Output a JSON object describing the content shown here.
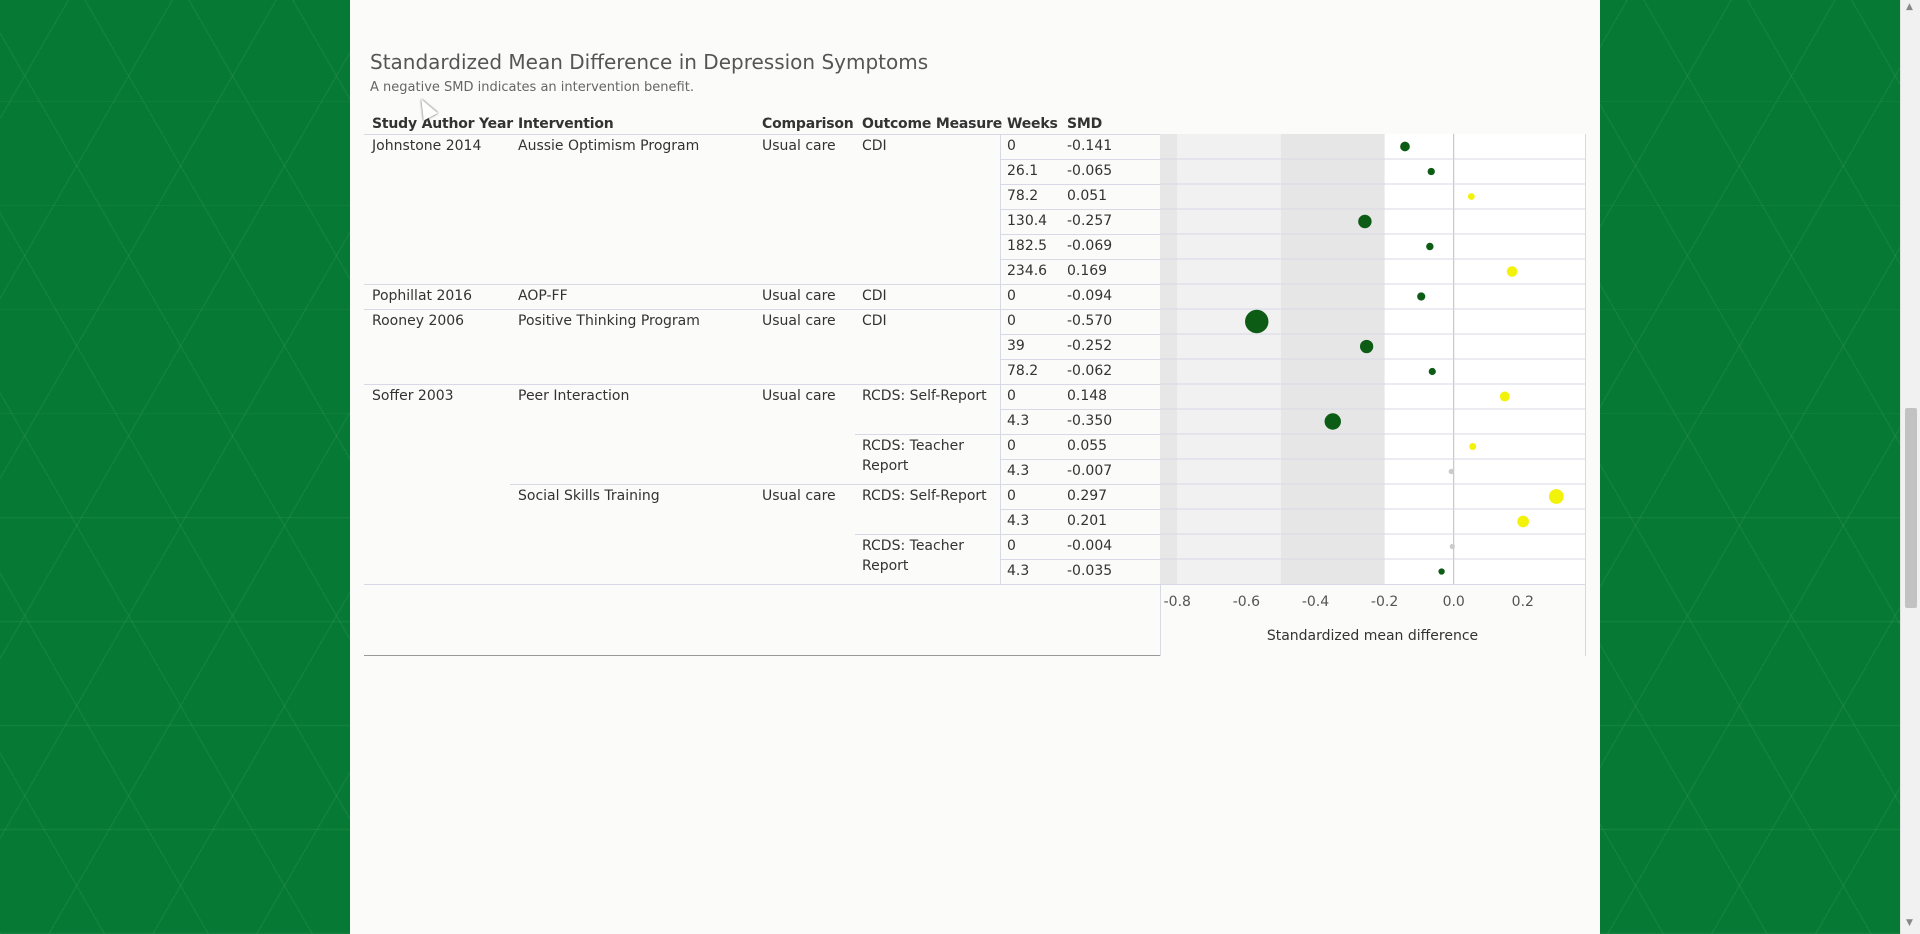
{
  "title": "Standardized Mean Difference in Depression Symptoms",
  "subtitle": "A negative SMD indicates an intervention benefit.",
  "columns": [
    "Study Author Year",
    "Intervention",
    "Comparison",
    "Outcome Measure",
    "Weeks",
    "SMD"
  ],
  "chart_data": {
    "type": "scatter",
    "title": "Standardized Mean Difference in Depression Symptoms",
    "subtitle": "A negative SMD indicates an intervention benefit.",
    "xlabel": "Standardized mean difference",
    "xlim": [
      -0.85,
      0.38
    ],
    "xticks": [
      "-0.8",
      "-0.6",
      "-0.4",
      "-0.2",
      "0.0",
      "0.2"
    ],
    "bands": [
      [
        -0.8,
        -0.2
      ],
      [
        -0.5,
        -0.2
      ]
    ],
    "colors": {
      "benefit": "#0d5c16",
      "harm": "#f2f20a",
      "neutral": "#cccccc"
    },
    "rows": [
      {
        "study": "Johnstone 2014",
        "intervention": "Aussie Optimism Program",
        "comparison": "Usual care",
        "outcome": "CDI",
        "weeks": "0",
        "smd": "-0.141",
        "x": -0.141
      },
      {
        "study": "",
        "intervention": "",
        "comparison": "",
        "outcome": "",
        "weeks": "26.1",
        "smd": "-0.065",
        "x": -0.065
      },
      {
        "study": "",
        "intervention": "",
        "comparison": "",
        "outcome": "",
        "weeks": "78.2",
        "smd": "0.051",
        "x": 0.051
      },
      {
        "study": "",
        "intervention": "",
        "comparison": "",
        "outcome": "",
        "weeks": "130.4",
        "smd": "-0.257",
        "x": -0.257
      },
      {
        "study": "",
        "intervention": "",
        "comparison": "",
        "outcome": "",
        "weeks": "182.5",
        "smd": "-0.069",
        "x": -0.069
      },
      {
        "study": "",
        "intervention": "",
        "comparison": "",
        "outcome": "",
        "weeks": "234.6",
        "smd": "0.169",
        "x": 0.169
      },
      {
        "study": "Pophillat 2016",
        "intervention": "AOP-FF",
        "comparison": "Usual care",
        "outcome": "CDI",
        "weeks": "0",
        "smd": "-0.094",
        "x": -0.094
      },
      {
        "study": "Rooney 2006",
        "intervention": "Positive Thinking Program",
        "comparison": "Usual care",
        "outcome": "CDI",
        "weeks": "0",
        "smd": "-0.570",
        "x": -0.57
      },
      {
        "study": "",
        "intervention": "",
        "comparison": "",
        "outcome": "",
        "weeks": "39",
        "smd": "-0.252",
        "x": -0.252
      },
      {
        "study": "",
        "intervention": "",
        "comparison": "",
        "outcome": "",
        "weeks": "78.2",
        "smd": "-0.062",
        "x": -0.062
      },
      {
        "study": "Soffer 2003",
        "intervention": "Peer Interaction",
        "comparison": "Usual care",
        "outcome": "RCDS: Self-Report",
        "weeks": "0",
        "smd": "0.148",
        "x": 0.148
      },
      {
        "study": "",
        "intervention": "",
        "comparison": "",
        "outcome": "",
        "weeks": "4.3",
        "smd": "-0.350",
        "x": -0.35
      },
      {
        "study": "",
        "intervention": "",
        "comparison": "",
        "outcome": "RCDS: Teacher Report",
        "weeks": "0",
        "smd": "0.055",
        "x": 0.055
      },
      {
        "study": "",
        "intervention": "",
        "comparison": "",
        "outcome": "",
        "weeks": "4.3",
        "smd": "-0.007",
        "x": -0.007
      },
      {
        "study": "",
        "intervention": "Social Skills Training",
        "comparison": "Usual care",
        "outcome": "RCDS: Self-Report",
        "weeks": "0",
        "smd": "0.297",
        "x": 0.297
      },
      {
        "study": "",
        "intervention": "",
        "comparison": "",
        "outcome": "",
        "weeks": "4.3",
        "smd": "0.201",
        "x": 0.201
      },
      {
        "study": "",
        "intervention": "",
        "comparison": "",
        "outcome": "RCDS: Teacher Report",
        "weeks": "0",
        "smd": "-0.004",
        "x": -0.004
      },
      {
        "study": "",
        "intervention": "",
        "comparison": "",
        "outcome": "",
        "weeks": "4.3",
        "smd": "-0.035",
        "x": -0.035
      }
    ]
  }
}
